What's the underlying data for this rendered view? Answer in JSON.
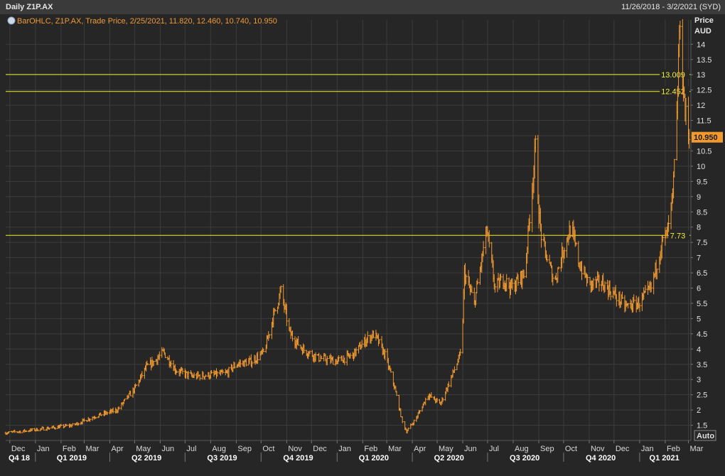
{
  "header": {
    "title": "Daily Z1P.AX",
    "date_range": "11/26/2018 - 3/2/2021 (SYD)"
  },
  "legend": {
    "text": "BarOHLC, Z1P.AX, Trade Price, 2/25/2021, 11.820, 12.460, 10.740, 10.950"
  },
  "axis": {
    "y_title": "Price",
    "y_unit": "AUD",
    "auto_label": "Auto"
  },
  "colors": {
    "background": "#262626",
    "series": "#f39a2e",
    "hline": "#f2f02a",
    "grid": "#3c3c3c",
    "last_badge": "#f39a2e"
  },
  "chart_data": {
    "type": "bar",
    "subtype": "ohlc",
    "title": "Daily Z1P.AX",
    "ylabel": "Price AUD",
    "ylim": [
      1.0,
      14.8
    ],
    "yticks": [
      1.5,
      2,
      2.5,
      3,
      3.5,
      4,
      4.5,
      5,
      5.5,
      6,
      6.5,
      7,
      7.5,
      8,
      8.5,
      9,
      9.5,
      10,
      10.5,
      11,
      11.5,
      12,
      12.5,
      13,
      13.5,
      14
    ],
    "grid": true,
    "legend": "top-left",
    "last_value": "10.950",
    "horizontal_lines": [
      {
        "value": 13.009,
        "label": "13.009"
      },
      {
        "value": 12.452,
        "label": "12.452"
      },
      {
        "value": 7.73,
        "label": "7.73"
      }
    ],
    "months": [
      "Dec",
      "Jan",
      "Feb",
      "Mar",
      "Apr",
      "May",
      "Jun",
      "Jul",
      "Aug",
      "Sep",
      "Oct",
      "Nov",
      "Dec",
      "Jan",
      "Feb",
      "Mar",
      "Apr",
      "May",
      "Jun",
      "Jul",
      "Aug",
      "Sep",
      "Oct",
      "Nov",
      "Dec",
      "Jan",
      "Feb",
      "Mar"
    ],
    "quarters": [
      "Q4 18",
      "Q1 2019",
      "Q2 2019",
      "Q3 2019",
      "Q4 2019",
      "Q1 2020",
      "Q2 2020",
      "Q3 2020",
      "Q4 2020",
      "Q1 2021"
    ],
    "x": [
      "2018-11-26",
      "2018-12-15",
      "2019-01-15",
      "2019-02-15",
      "2019-03-15",
      "2019-04-10",
      "2019-05-01",
      "2019-05-15",
      "2019-05-25",
      "2019-06-05",
      "2019-06-20",
      "2019-07-10",
      "2019-08-01",
      "2019-08-20",
      "2019-09-01",
      "2019-09-20",
      "2019-10-05",
      "2019-10-15",
      "2019-10-25",
      "2019-11-05",
      "2019-11-20",
      "2019-12-10",
      "2020-01-01",
      "2020-01-20",
      "2020-02-05",
      "2020-02-15",
      "2020-02-28",
      "2020-03-10",
      "2020-03-20",
      "2020-03-25",
      "2020-04-05",
      "2020-04-20",
      "2020-05-05",
      "2020-05-20",
      "2020-05-29",
      "2020-06-01",
      "2020-06-03",
      "2020-06-15",
      "2020-06-30",
      "2020-07-10",
      "2020-07-20",
      "2020-07-30",
      "2020-08-15",
      "2020-08-28",
      "2020-09-01",
      "2020-09-05",
      "2020-09-20",
      "2020-10-01",
      "2020-10-10",
      "2020-10-20",
      "2020-11-01",
      "2020-11-15",
      "2020-12-01",
      "2020-12-15",
      "2020-12-31",
      "2021-01-15",
      "2021-01-28",
      "2021-02-02",
      "2021-02-05",
      "2021-02-10",
      "2021-02-15",
      "2021-02-18",
      "2021-02-22",
      "2021-02-25",
      "2021-03-02"
    ],
    "values": [
      1.25,
      1.3,
      1.4,
      1.5,
      1.8,
      2.0,
      2.7,
      3.4,
      3.6,
      3.9,
      3.3,
      3.1,
      3.15,
      3.2,
      3.5,
      3.6,
      3.9,
      5.0,
      5.9,
      4.5,
      4.0,
      3.7,
      3.6,
      3.8,
      4.3,
      4.5,
      3.8,
      2.8,
      1.6,
      1.3,
      1.7,
      2.5,
      2.2,
      3.2,
      3.8,
      5.0,
      6.5,
      5.5,
      7.9,
      6.0,
      6.3,
      6.0,
      6.5,
      10.6,
      8.5,
      7.5,
      6.2,
      7.3,
      8.0,
      6.8,
      6.1,
      6.2,
      5.8,
      5.4,
      5.5,
      6.0,
      7.5,
      7.7,
      8.0,
      9.0,
      11.5,
      14.5,
      13.0,
      11.8,
      10.95
    ]
  }
}
